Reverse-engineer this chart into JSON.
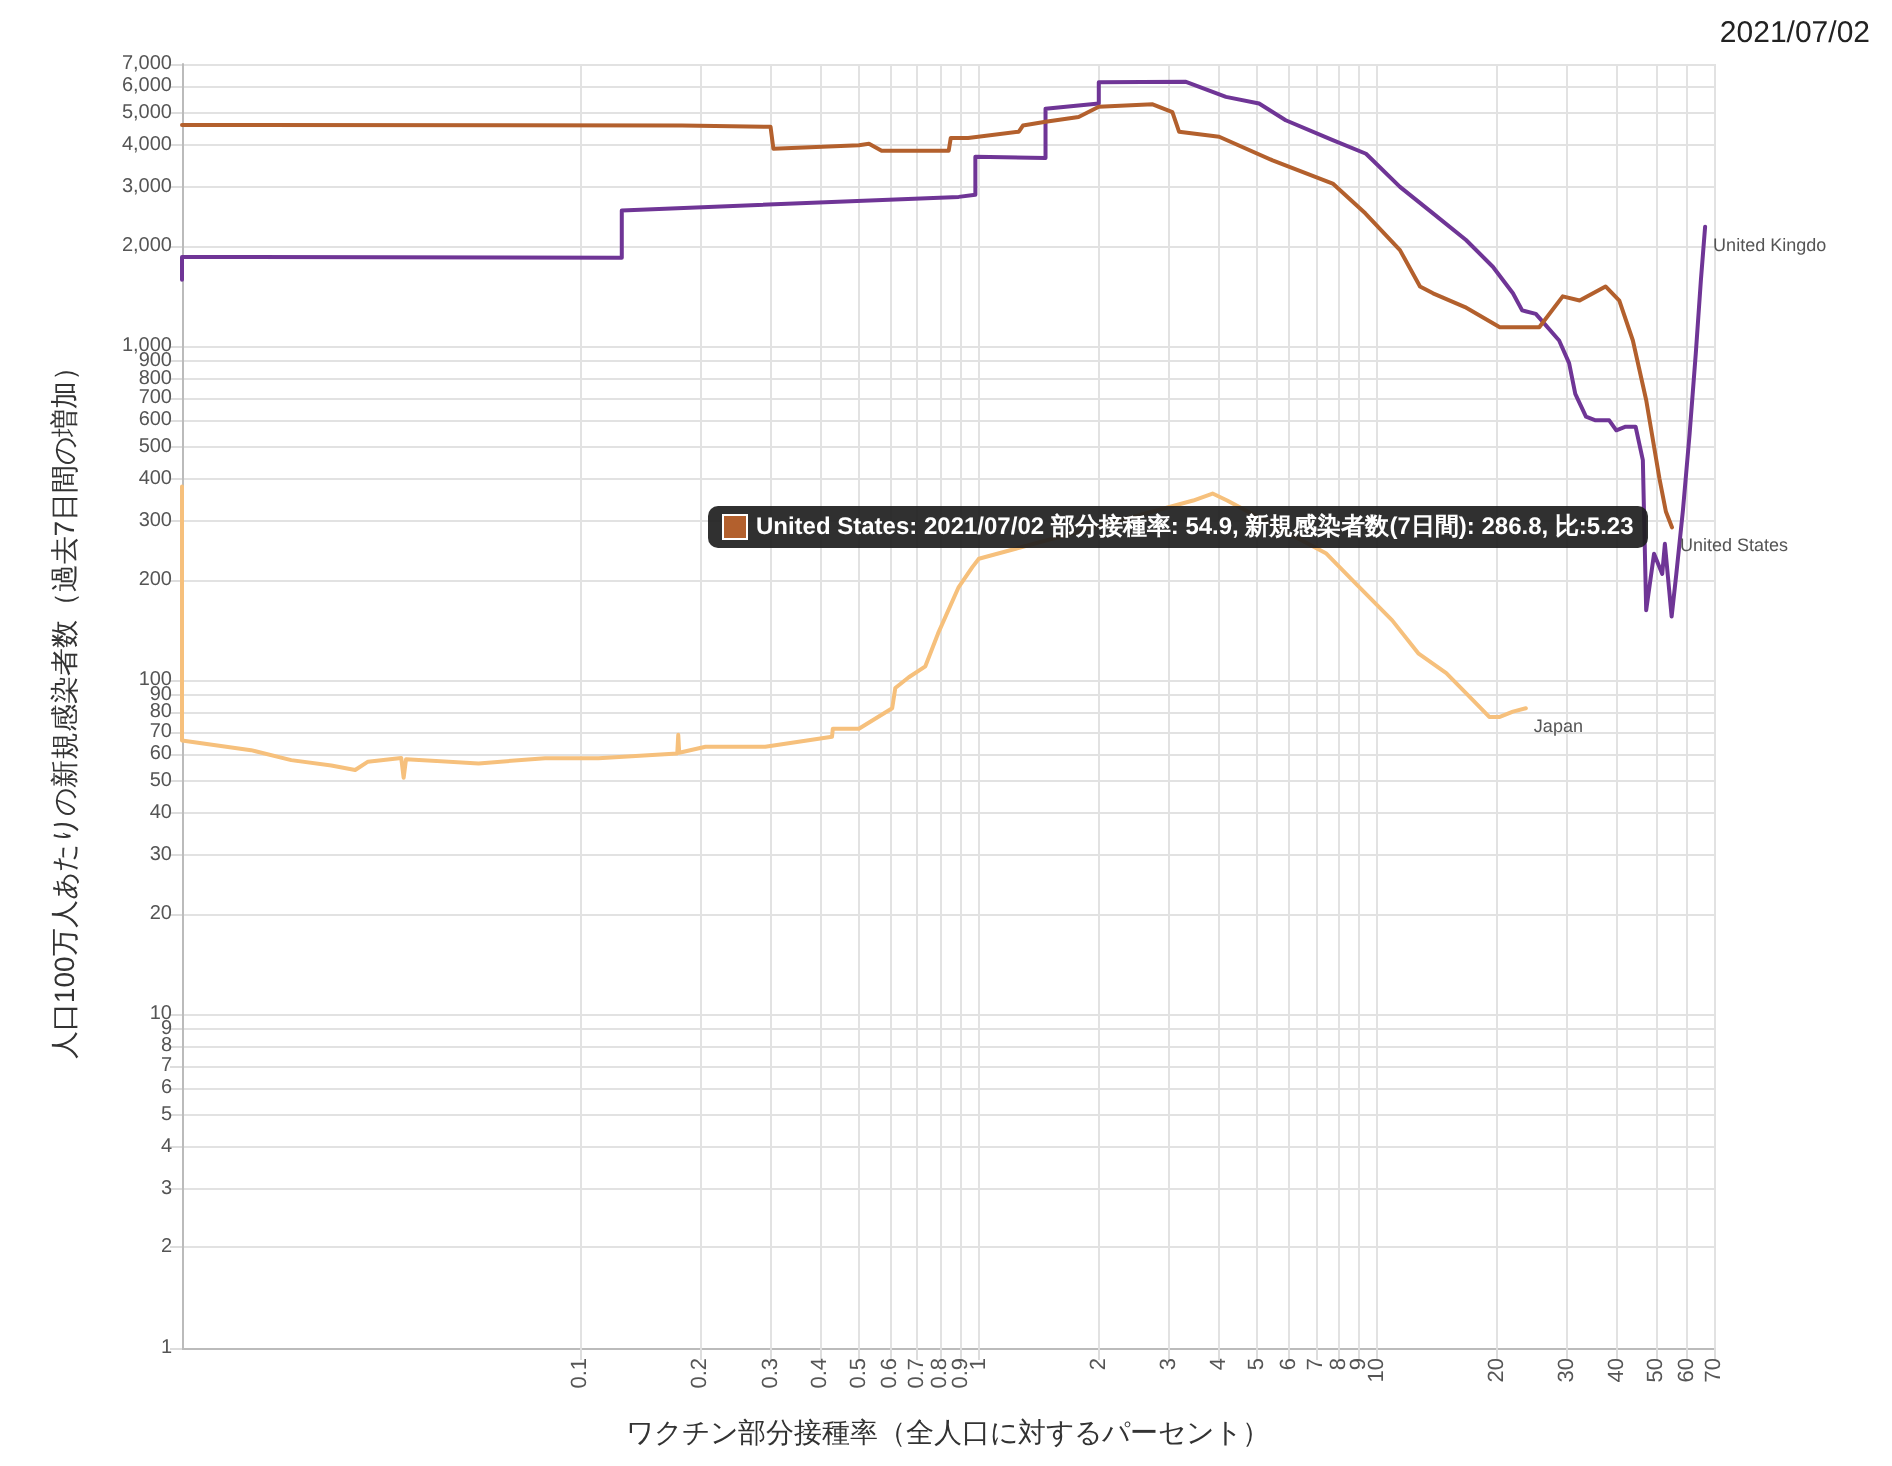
{
  "chart_data": {
    "type": "line",
    "title": "2021/07/02",
    "xlabel": "ワクチン部分接種率（全人口に対するパーセント）",
    "ylabel": "人口100万人あたりの新規感染者数（過去7日間の増加）",
    "log": "xy",
    "grid": true,
    "xlim": [
      0.01,
      70
    ],
    "ylim": [
      1,
      7000
    ],
    "xticks": [
      0.1,
      0.2,
      0.3,
      0.4,
      0.5,
      0.6,
      0.7,
      0.8,
      0.9,
      1,
      2,
      3,
      4,
      5,
      6,
      7,
      8,
      9,
      10,
      20,
      30,
      40,
      50,
      60,
      70
    ],
    "yticks": [
      1,
      2,
      3,
      4,
      5,
      6,
      7,
      8,
      9,
      10,
      20,
      30,
      40,
      50,
      60,
      70,
      80,
      90,
      100,
      200,
      300,
      400,
      500,
      600,
      700,
      800,
      900,
      {
        "value": 1000,
        "label": "1,000"
      },
      {
        "value": 2000,
        "label": "2,000"
      },
      {
        "value": 3000,
        "label": "3,000"
      },
      {
        "value": 4000,
        "label": "4,000"
      },
      {
        "value": 5000,
        "label": "5,000"
      },
      {
        "value": 6000,
        "label": "6,000"
      },
      {
        "value": 7000,
        "label": "7,000"
      }
    ],
    "series": [
      {
        "name": "Japan",
        "color": "#f6c07c",
        "x": [
          0.01,
          0.01,
          0.0149,
          0.0188,
          0.0237,
          0.0272,
          0.0293,
          0.0355,
          0.036,
          0.0365,
          0.0555,
          0.0815,
          0.111,
          0.175,
          0.176,
          0.177,
          0.206,
          0.291,
          0.428,
          0.43,
          0.5,
          0.606,
          0.617,
          0.667,
          0.734,
          0.79,
          0.89,
          0.963,
          1,
          3.45,
          3.86,
          4.2,
          7.43,
          8.67,
          10.9,
          12.7,
          14.9,
          17.4,
          19.1,
          20.3,
          21.9,
          23.6
        ],
        "values": [
          380,
          66,
          61.7,
          57.6,
          55.5,
          53.8,
          57,
          58.5,
          51,
          58,
          56.3,
          58.4,
          58.4,
          60.3,
          68.6,
          60.6,
          63.2,
          63.2,
          67.7,
          71.5,
          71.5,
          82.4,
          94.7,
          102,
          110,
          138,
          190,
          218,
          231,
          345,
          362,
          345,
          240,
          199,
          151,
          120,
          105,
          87,
          77.6,
          77.6,
          80.5,
          82.4
        ]
      },
      {
        "name": "United Kingdo",
        "color": "#6f3596",
        "x": [
          0.01,
          0.01,
          0.127,
          0.127,
          0.89,
          0.98,
          0.98,
          1.47,
          1.47,
          2,
          2,
          3.31,
          4.17,
          5.05,
          5.89,
          7.73,
          9.37,
          11.4,
          13.8,
          16.7,
          19.5,
          21.9,
          23.1,
          25,
          28.6,
          30.3,
          31.4,
          33.4,
          35.3,
          38.2,
          39.8,
          42,
          44.5,
          46.4,
          47.3,
          49.5,
          51.9,
          52.7,
          54.8,
          56.3,
          58.5,
          60.8,
          63,
          64.9,
          66.5
        ],
        "values": [
          1580,
          1850,
          1840,
          2550,
          2800,
          2840,
          3690,
          3660,
          5140,
          5330,
          6170,
          6190,
          5580,
          5330,
          4750,
          4140,
          3770,
          3000,
          2500,
          2080,
          1730,
          1440,
          1280,
          1250,
          1040,
          890,
          720,
          615,
          600,
          600,
          560,
          574,
          574,
          456,
          162,
          239,
          208,
          256,
          155,
          208,
          323,
          547,
          950,
          1580,
          2280
        ]
      },
      {
        "name": "United States",
        "color": "#b3602d",
        "x": [
          0.01,
          0.18,
          0.3,
          0.305,
          0.5,
          0.53,
          0.57,
          0.84,
          0.85,
          0.94,
          1.26,
          1.29,
          1.47,
          1.78,
          2,
          2.73,
          3.06,
          3.18,
          4.01,
          5.46,
          7.73,
          9.33,
          11.4,
          12.8,
          13.8,
          16.6,
          20.3,
          25.5,
          29.2,
          32.2,
          37.4,
          40.5,
          43.8,
          47.3,
          51.1,
          53,
          54.9
        ],
        "values": [
          4600,
          4580,
          4540,
          3900,
          4000,
          4040,
          3850,
          3850,
          4200,
          4200,
          4390,
          4580,
          4700,
          4860,
          5210,
          5300,
          5020,
          4390,
          4240,
          3600,
          3070,
          2500,
          1940,
          1510,
          1440,
          1310,
          1140,
          1140,
          1410,
          1370,
          1510,
          1370,
          1040,
          690,
          400,
          320,
          286.8
        ]
      }
    ],
    "annotations": [
      {
        "text": "United States: 2021/07/02 部分接種率: 54.9, 新規感染者数(7日間): 286.8, 比:5.23",
        "x": 54.9,
        "y": 286.8
      }
    ]
  }
}
